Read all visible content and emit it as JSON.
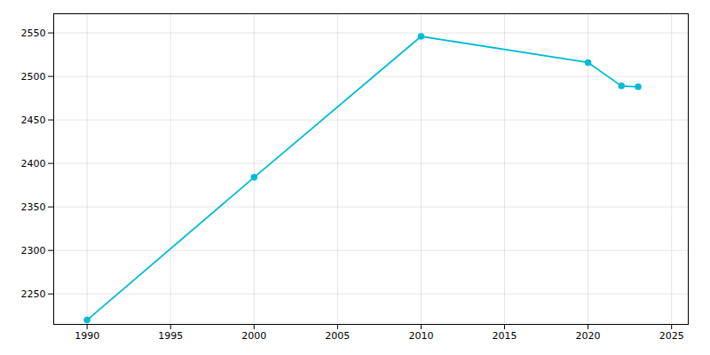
{
  "chart_data": {
    "type": "line",
    "x": [
      1990,
      2000,
      2010,
      2020,
      2022,
      2023
    ],
    "values": [
      2220,
      2384,
      2546,
      2516,
      2489,
      2488
    ],
    "color": "#00BCD4",
    "marker": "circle",
    "xlim": [
      1988,
      2026
    ],
    "ylim": [
      2215,
      2572
    ],
    "xticks": [
      1990,
      1995,
      2000,
      2005,
      2010,
      2015,
      2020,
      2025
    ],
    "yticks": [
      2250,
      2300,
      2350,
      2400,
      2450,
      2500,
      2550
    ],
    "grid": true
  }
}
